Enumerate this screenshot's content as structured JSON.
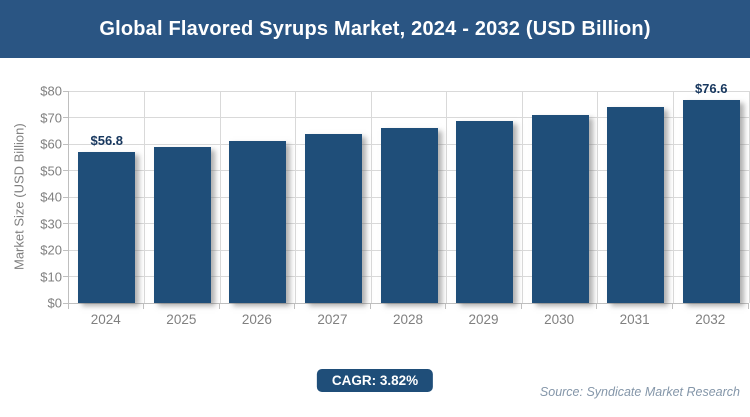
{
  "header": {
    "title": "Global Flavored Syrups Market, 2024 - 2032 (USD Billion)"
  },
  "footer": {
    "cagr_label": "CAGR: 3.82%",
    "source_label": "Source: Syndicate Market Research"
  },
  "colors": {
    "header_bg": "#2a5583",
    "bar_fill": "#1f4e79",
    "cagr_bg": "#1f4e79",
    "data_label": "#17375e",
    "axis_text": "#808080",
    "gridline": "#d9d9d9",
    "axis_line": "#bfbfbf",
    "source_text": "#8496a9"
  },
  "chart_data": {
    "type": "bar",
    "title": "Global Flavored Syrups Market, 2024 - 2032 (USD Billion)",
    "categories": [
      "2024",
      "2025",
      "2026",
      "2027",
      "2028",
      "2029",
      "2030",
      "2031",
      "2032"
    ],
    "values": [
      56.8,
      59.0,
      61.2,
      63.6,
      66.0,
      68.5,
      71.1,
      73.8,
      76.6
    ],
    "labeled_values": {
      "2024": "$56.8",
      "2032": "$76.6"
    },
    "xlabel": "",
    "ylabel": "Market Size (USD Billion)",
    "ylim": [
      0,
      80
    ],
    "ytick_step": 10,
    "ytick_labels": [
      "$0",
      "$10",
      "$20",
      "$30",
      "$40",
      "$50",
      "$60",
      "$70",
      "$80"
    ],
    "grid": true,
    "legend": false,
    "annotations": [
      "CAGR: 3.82%",
      "Source: Syndicate Market Research"
    ]
  }
}
